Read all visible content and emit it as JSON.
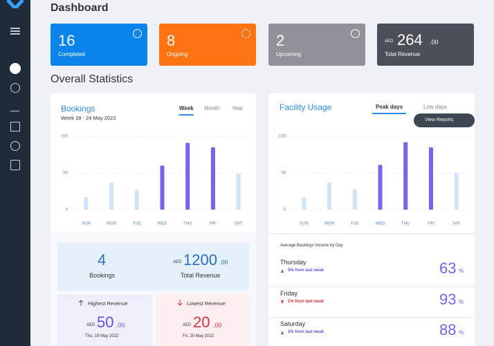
{
  "header": {
    "title": "Dashboard"
  },
  "cards": [
    {
      "value": 16,
      "label": "Completed",
      "color": "#0a84ea"
    },
    {
      "value": 8,
      "label": "Ongoing",
      "color": "#ff7412"
    },
    {
      "value": 2,
      "label": "Upcoming",
      "color": "#8f9399"
    },
    {
      "currency": "AED",
      "value": "264",
      "decimals": ".00",
      "label": "Total Revenue",
      "color": "#4b5058"
    }
  ],
  "section_title": "Overall Statistics",
  "bookings": {
    "title": "Bookings",
    "tabs": [
      "Week",
      "Month",
      "Year"
    ],
    "subtitle": "Week 18 - 24 May 2022",
    "chart": {
      "type": "bar",
      "categories": [
        "SUN",
        "MON",
        "TUE",
        "WED",
        "THU",
        "FRI",
        "SAT"
      ],
      "values": [
        17,
        37,
        27,
        60,
        91,
        85,
        49
      ],
      "colors": [
        "#cfe4f8",
        "#cfe4f8",
        "#cfe4f8",
        "#7b61ee",
        "#7b61ee",
        "#7b61ee",
        "#cfe4f8"
      ],
      "ylim": [
        0,
        100
      ],
      "yticks": [
        0,
        50,
        100
      ],
      "grid": true
    },
    "summary": {
      "count": 4,
      "count_label": "Bookings",
      "currency": "AED",
      "revenue": "1200",
      "decimals": ".00",
      "revenue_label": "Total Revenue"
    },
    "highest": {
      "label": "Highest Revenue",
      "currency": "AED",
      "value": "50",
      "decimals": ".00",
      "date": "Thu, 19 May 2022"
    },
    "lowest": {
      "label": "Lowest Revenue",
      "currency": "AED",
      "value": "20",
      "decimals": ".00",
      "date": "Fri, 20 May 2022"
    }
  },
  "facility": {
    "title": "Facility Usage",
    "tabs": [
      "Peak days",
      "Low days"
    ],
    "button": "View Reports",
    "chart": {
      "type": "bar",
      "categories": [
        "SUN",
        "MON",
        "TUE",
        "WED",
        "THU",
        "FRI",
        "SAT"
      ],
      "values": [
        17,
        37,
        28,
        61,
        92,
        85,
        50
      ],
      "colors": [
        "#cfe4f8",
        "#cfe4f8",
        "#cfe4f8",
        "#7b61ee",
        "#7b61ee",
        "#7b61ee",
        "#cfe4f8"
      ],
      "ylim": [
        0,
        100
      ],
      "yticks": [
        0,
        50,
        100
      ],
      "grid": true
    },
    "list_title": "Average Bookings Volume by Day",
    "rows": [
      {
        "day": "Thursday",
        "change": "5% from last week",
        "value": 63,
        "unit": "%"
      },
      {
        "day": "Friday",
        "change": "1% from last week",
        "value": 93,
        "unit": "%"
      },
      {
        "day": "Saturday",
        "change": "2% from last week",
        "value": 88,
        "unit": "%"
      }
    ]
  }
}
